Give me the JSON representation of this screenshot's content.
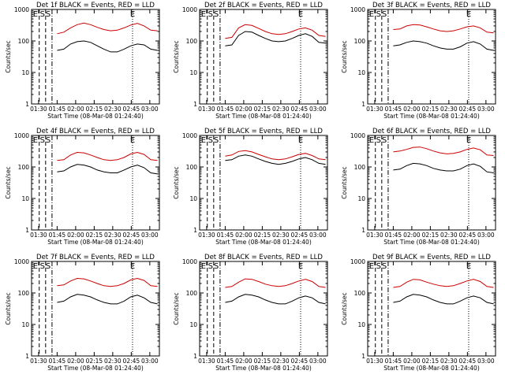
{
  "chart_data": [
    {
      "type": "line",
      "title": "Det 1f BLACK = Events, RED = LLD",
      "xlabel": "Start Time (08-Mar-08 01:24:40)",
      "ylabel": "Counts/sec",
      "x_ticks": [
        "01:30",
        "01:45",
        "02:00",
        "02:15",
        "02:30",
        "02:45",
        "03:00"
      ],
      "y_ticks": [
        "1",
        "10",
        "100",
        "1000"
      ],
      "ylim": [
        1,
        1000
      ],
      "y_scale": "log",
      "markers": [
        "E",
        "S",
        "S",
        "E"
      ],
      "series": [
        {
          "color": "#cc0000",
          "values": [
            170,
            190,
            260,
            330,
            370,
            330,
            270,
            230,
            210,
            220,
            260,
            320,
            360,
            300,
            220,
            210
          ]
        },
        {
          "color": "#000000",
          "values": [
            50,
            55,
            80,
            95,
            100,
            90,
            70,
            55,
            45,
            45,
            55,
            70,
            80,
            75,
            55,
            50
          ]
        }
      ]
    },
    {
      "type": "line",
      "title": "Det 2f BLACK = Events, RED = LLD",
      "xlabel": "Start Time (08-Mar-08 01:24:40)",
      "ylabel": "Counts/sec",
      "x_ticks": [
        "01:30",
        "01:45",
        "02:00",
        "02:15",
        "02:30",
        "02:45",
        "03:00"
      ],
      "y_ticks": [
        "1",
        "10",
        "100",
        "1000"
      ],
      "ylim": [
        1,
        1000
      ],
      "y_scale": "log",
      "markers": [
        "E",
        "S",
        "S",
        "E"
      ],
      "series": [
        {
          "color": "#cc0000",
          "values": [
            120,
            130,
            260,
            330,
            310,
            250,
            200,
            170,
            160,
            170,
            200,
            240,
            260,
            220,
            150,
            140
          ]
        },
        {
          "color": "#000000",
          "values": [
            70,
            75,
            150,
            200,
            190,
            150,
            120,
            100,
            95,
            100,
            120,
            150,
            170,
            140,
            90,
            85
          ]
        }
      ]
    },
    {
      "type": "line",
      "title": "Det 3f BLACK = Events, RED = LLD",
      "xlabel": "Start Time (08-Mar-08 01:24:40)",
      "ylabel": "Counts/sec",
      "x_ticks": [
        "01:30",
        "01:45",
        "02:00",
        "02:15",
        "02:30",
        "02:45",
        "03:00"
      ],
      "y_ticks": [
        "1",
        "10",
        "100",
        "1000"
      ],
      "ylim": [
        1,
        1000
      ],
      "y_scale": "log",
      "markers": [
        "E",
        "S",
        "S",
        "E"
      ],
      "series": [
        {
          "color": "#cc0000",
          "values": [
            230,
            240,
            300,
            330,
            320,
            280,
            240,
            210,
            200,
            210,
            240,
            280,
            300,
            260,
            190,
            180
          ]
        },
        {
          "color": "#000000",
          "values": [
            70,
            75,
            90,
            100,
            95,
            85,
            70,
            60,
            55,
            55,
            65,
            85,
            95,
            80,
            55,
            50
          ]
        }
      ]
    },
    {
      "type": "line",
      "title": "Det 4f BLACK = Events, RED = LLD",
      "xlabel": "Start Time (08-Mar-08 01:24:40)",
      "ylabel": "Counts/sec",
      "x_ticks": [
        "01:30",
        "01:45",
        "02:00",
        "02:15",
        "02:30",
        "02:45",
        "03:00"
      ],
      "y_ticks": [
        "1",
        "10",
        "100",
        "1000"
      ],
      "ylim": [
        1,
        1000
      ],
      "y_scale": "log",
      "markers": [
        "E",
        "S",
        "S",
        "E"
      ],
      "series": [
        {
          "color": "#cc0000",
          "values": [
            160,
            170,
            240,
            290,
            280,
            240,
            200,
            170,
            160,
            170,
            200,
            260,
            290,
            250,
            170,
            160
          ]
        },
        {
          "color": "#000000",
          "values": [
            70,
            75,
            100,
            120,
            115,
            100,
            80,
            70,
            65,
            65,
            80,
            100,
            115,
            95,
            65,
            60
          ]
        }
      ]
    },
    {
      "type": "line",
      "title": "Det 5f BLACK = Events, RED = LLD",
      "xlabel": "Start Time (08-Mar-08 01:24:40)",
      "ylabel": "Counts/sec",
      "x_ticks": [
        "01:30",
        "01:45",
        "02:00",
        "02:15",
        "02:30",
        "02:45",
        "03:00"
      ],
      "y_ticks": [
        "1",
        "10",
        "100",
        "1000"
      ],
      "ylim": [
        1,
        1000
      ],
      "y_scale": "log",
      "markers": [
        "E",
        "S",
        "S",
        "E"
      ],
      "series": [
        {
          "color": "#cc0000",
          "values": [
            220,
            240,
            310,
            330,
            300,
            250,
            210,
            180,
            170,
            180,
            210,
            250,
            270,
            230,
            180,
            170
          ]
        },
        {
          "color": "#000000",
          "values": [
            160,
            170,
            220,
            240,
            220,
            180,
            150,
            130,
            120,
            130,
            150,
            180,
            200,
            170,
            130,
            120
          ]
        }
      ]
    },
    {
      "type": "line",
      "title": "Det 6f BLACK = Events, RED = LLD",
      "xlabel": "Start Time (08-Mar-08 01:24:40)",
      "ylabel": "Counts/sec",
      "x_ticks": [
        "01:30",
        "01:45",
        "02:00",
        "02:15",
        "02:30",
        "02:45",
        "03:00"
      ],
      "y_ticks": [
        "1",
        "10",
        "100",
        "1000"
      ],
      "ylim": [
        1,
        1000
      ],
      "y_scale": "log",
      "markers": [
        "E",
        "S",
        "S",
        "E"
      ],
      "series": [
        {
          "color": "#cc0000",
          "values": [
            300,
            320,
            360,
            420,
            430,
            380,
            320,
            280,
            260,
            270,
            300,
            360,
            400,
            350,
            240,
            230
          ]
        },
        {
          "color": "#000000",
          "values": [
            80,
            85,
            110,
            130,
            125,
            110,
            90,
            80,
            75,
            75,
            85,
            110,
            125,
            105,
            70,
            65
          ]
        }
      ]
    },
    {
      "type": "line",
      "title": "Det 7f BLACK = Events, RED = LLD",
      "xlabel": "Start Time (08-Mar-08 01:24:40)",
      "ylabel": "Counts/sec",
      "x_ticks": [
        "01:30",
        "01:45",
        "02:00",
        "02:15",
        "02:30",
        "02:45",
        "03:00"
      ],
      "y_ticks": [
        "1",
        "10",
        "100",
        "1000"
      ],
      "ylim": [
        1,
        1000
      ],
      "y_scale": "log",
      "markers": [
        "E",
        "S",
        "S",
        "E"
      ],
      "series": [
        {
          "color": "#cc0000",
          "values": [
            170,
            180,
            240,
            290,
            280,
            240,
            200,
            170,
            160,
            170,
            200,
            260,
            290,
            250,
            170,
            160
          ]
        },
        {
          "color": "#000000",
          "values": [
            50,
            55,
            75,
            90,
            85,
            75,
            60,
            50,
            45,
            45,
            55,
            75,
            85,
            70,
            50,
            45
          ]
        }
      ]
    },
    {
      "type": "line",
      "title": "Det 8f BLACK = Events, RED = LLD",
      "xlabel": "Start Time (08-Mar-08 01:24:40)",
      "ylabel": "Counts/sec",
      "x_ticks": [
        "01:30",
        "01:45",
        "02:00",
        "02:15",
        "02:30",
        "02:45",
        "03:00"
      ],
      "y_ticks": [
        "1",
        "10",
        "100",
        "1000"
      ],
      "ylim": [
        1,
        1000
      ],
      "y_scale": "log",
      "markers": [
        "E",
        "S",
        "S",
        "E"
      ],
      "series": [
        {
          "color": "#cc0000",
          "values": [
            150,
            160,
            220,
            280,
            270,
            230,
            190,
            170,
            160,
            170,
            200,
            240,
            270,
            230,
            160,
            150
          ]
        },
        {
          "color": "#000000",
          "values": [
            50,
            55,
            75,
            90,
            85,
            75,
            60,
            50,
            45,
            45,
            55,
            70,
            80,
            70,
            50,
            45
          ]
        }
      ]
    },
    {
      "type": "line",
      "title": "Det 9f BLACK = Events, RED = LLD",
      "xlabel": "Start Time (08-Mar-08 01:24:40)",
      "ylabel": "Counts/sec",
      "x_ticks": [
        "01:30",
        "01:45",
        "02:00",
        "02:15",
        "02:30",
        "02:45",
        "03:00"
      ],
      "y_ticks": [
        "1",
        "10",
        "100",
        "1000"
      ],
      "ylim": [
        1,
        1000
      ],
      "y_scale": "log",
      "markers": [
        "E",
        "S",
        "S",
        "E"
      ],
      "series": [
        {
          "color": "#cc0000",
          "values": [
            150,
            160,
            220,
            270,
            260,
            220,
            190,
            170,
            160,
            170,
            200,
            240,
            270,
            230,
            160,
            150
          ]
        },
        {
          "color": "#000000",
          "values": [
            50,
            55,
            75,
            90,
            85,
            75,
            60,
            50,
            45,
            45,
            55,
            70,
            80,
            70,
            50,
            45
          ]
        }
      ]
    }
  ]
}
